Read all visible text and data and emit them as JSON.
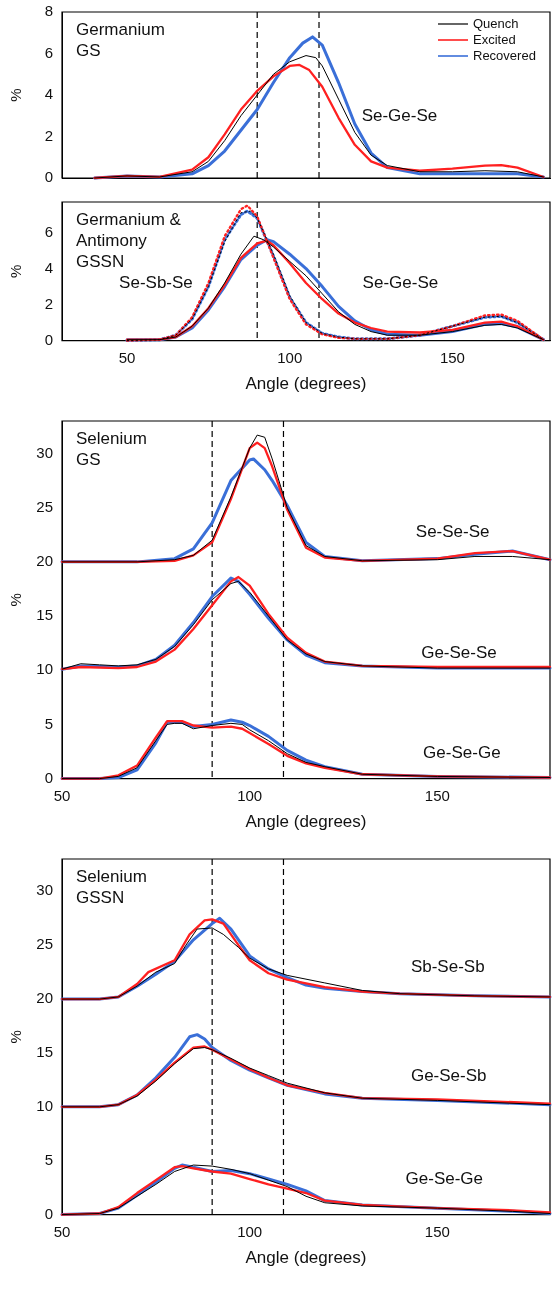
{
  "chart_data": [
    {
      "type": "line",
      "title": "Germanium\nGS",
      "ylabel": "%",
      "xlim": [
        30,
        180
      ],
      "xticks": [
        50,
        100,
        150
      ],
      "ylim": [
        0,
        8
      ],
      "yticks": [
        0,
        2,
        4,
        6,
        8
      ],
      "tick_labels": "y",
      "legend": "top right",
      "marker": "none",
      "ref_lines": [
        {
          "axis": "x",
          "value": 90,
          "line_style": "dashed",
          "color": "#000000"
        },
        {
          "axis": "x",
          "value": 109,
          "line_style": "dashed",
          "color": "#000000"
        }
      ],
      "annotations": [
        "Se-Ge-Se"
      ],
      "series": [
        {
          "name": "Quench",
          "color": "#000000",
          "x": [
            40,
            50,
            60,
            70,
            75,
            80,
            85,
            90,
            95,
            100,
            105,
            108,
            110,
            115,
            120,
            125,
            130,
            140,
            150,
            160,
            170,
            178
          ],
          "values": [
            0,
            0.1,
            0.05,
            0.3,
            0.8,
            1.8,
            3.0,
            4.0,
            5.0,
            5.6,
            5.9,
            5.8,
            5.4,
            3.8,
            2.2,
            1.1,
            0.6,
            0.3,
            0.3,
            0.35,
            0.3,
            0.05
          ]
        },
        {
          "name": "Excited",
          "color": "#ff2020",
          "x": [
            40,
            50,
            60,
            70,
            75,
            80,
            85,
            90,
            95,
            100,
            103,
            106,
            110,
            115,
            120,
            125,
            130,
            140,
            150,
            160,
            165,
            170,
            178
          ],
          "values": [
            0,
            0.1,
            0.05,
            0.4,
            1.0,
            2.1,
            3.3,
            4.2,
            4.9,
            5.4,
            5.45,
            5.2,
            4.4,
            2.9,
            1.6,
            0.8,
            0.5,
            0.35,
            0.45,
            0.6,
            0.62,
            0.5,
            0.05
          ]
        },
        {
          "name": "Recovered",
          "color": "#3a6fd8",
          "x": [
            40,
            50,
            60,
            70,
            75,
            80,
            85,
            90,
            95,
            100,
            104,
            107,
            110,
            115,
            120,
            125,
            130,
            140,
            150,
            160,
            170,
            178
          ],
          "values": [
            0,
            0.1,
            0.05,
            0.2,
            0.6,
            1.3,
            2.3,
            3.3,
            4.6,
            5.8,
            6.5,
            6.8,
            6.4,
            4.6,
            2.6,
            1.2,
            0.5,
            0.2,
            0.2,
            0.2,
            0.2,
            0.05
          ]
        }
      ]
    },
    {
      "type": "line",
      "title": "Germanium &\nAntimony\nGSSN",
      "xlabel": "Angle (degrees)",
      "ylabel": "%",
      "xlim": [
        30,
        180
      ],
      "xticks": [
        50,
        100,
        150
      ],
      "ylim": [
        0,
        7.7
      ],
      "yticks": [
        0,
        2,
        4,
        6
      ],
      "marker": "none",
      "ref_lines": [
        {
          "axis": "x",
          "value": 90,
          "line_style": "dashed",
          "color": "#000000"
        },
        {
          "axis": "x",
          "value": 109,
          "line_style": "dashed",
          "color": "#000000"
        }
      ],
      "annotations": [
        "Se-Sb-Se",
        "Se-Ge-Se"
      ],
      "series": [
        {
          "color": "#000000",
          "x": [
            50,
            60,
            65,
            70,
            75,
            80,
            85,
            89,
            92,
            95,
            100,
            105,
            110,
            115,
            120,
            125,
            130,
            140,
            150,
            160,
            165,
            170,
            178
          ],
          "values": [
            0.05,
            0.05,
            0.2,
            0.8,
            1.8,
            3.2,
            4.8,
            5.8,
            5.6,
            5.2,
            4.4,
            3.6,
            2.6,
            1.6,
            0.9,
            0.5,
            0.3,
            0.3,
            0.5,
            0.85,
            0.9,
            0.7,
            0.05
          ]
        },
        {
          "color": "#ff2020",
          "x": [
            50,
            60,
            65,
            70,
            75,
            80,
            85,
            90,
            93,
            95,
            100,
            105,
            110,
            115,
            120,
            125,
            130,
            140,
            150,
            160,
            165,
            170,
            178
          ],
          "values": [
            0.05,
            0.05,
            0.2,
            0.8,
            1.8,
            3.1,
            4.6,
            5.4,
            5.55,
            5.3,
            4.3,
            3.2,
            2.3,
            1.5,
            1.0,
            0.7,
            0.5,
            0.45,
            0.6,
            1.0,
            1.05,
            0.8,
            0.05
          ]
        },
        {
          "color": "#3a6fd8",
          "x": [
            50,
            60,
            65,
            70,
            75,
            80,
            85,
            90,
            93,
            95,
            100,
            105,
            110,
            115,
            120,
            125,
            130,
            140,
            150,
            160,
            165,
            170,
            178
          ],
          "values": [
            0.05,
            0.05,
            0.2,
            0.7,
            1.7,
            3.0,
            4.5,
            5.3,
            5.6,
            5.5,
            4.8,
            4.0,
            3.0,
            1.9,
            1.1,
            0.6,
            0.35,
            0.3,
            0.5,
            0.9,
            0.95,
            0.75,
            0.05
          ]
        },
        {
          "color": "#000000",
          "line_style": "dotted",
          "x": [
            50,
            60,
            65,
            70,
            75,
            80,
            85,
            88,
            90,
            95,
            100,
            105,
            110,
            115,
            120,
            130,
            140,
            150,
            160,
            165,
            170,
            178
          ],
          "values": [
            0,
            0.05,
            0.3,
            1.2,
            3.0,
            5.5,
            7.1,
            7.2,
            6.8,
            4.8,
            2.5,
            1.0,
            0.4,
            0.2,
            0.1,
            0.1,
            0.3,
            0.8,
            1.3,
            1.35,
            1.0,
            0.05
          ]
        },
        {
          "color": "#ff2020",
          "line_style": "dotted",
          "x": [
            50,
            60,
            65,
            70,
            75,
            80,
            85,
            87,
            90,
            95,
            100,
            105,
            110,
            115,
            120,
            130,
            140,
            150,
            160,
            165,
            170,
            178
          ],
          "values": [
            0,
            0.05,
            0.3,
            1.3,
            3.2,
            5.8,
            7.3,
            7.5,
            6.9,
            4.6,
            2.3,
            0.9,
            0.35,
            0.15,
            0.1,
            0.1,
            0.3,
            0.8,
            1.4,
            1.45,
            1.1,
            0.05
          ]
        },
        {
          "color": "#3a6fd8",
          "line_style": "dotted",
          "x": [
            50,
            60,
            65,
            70,
            75,
            80,
            85,
            87,
            90,
            95,
            100,
            105,
            110,
            115,
            120,
            130,
            140,
            150,
            160,
            165,
            170,
            178
          ],
          "values": [
            0,
            0.05,
            0.3,
            1.2,
            3.0,
            5.6,
            7.0,
            7.2,
            6.8,
            4.7,
            2.4,
            1.0,
            0.4,
            0.2,
            0.1,
            0.1,
            0.3,
            0.8,
            1.3,
            1.35,
            1.0,
            0.05
          ]
        }
      ]
    },
    {
      "type": "line",
      "title": "Selenium\nGS",
      "xlabel": "Angle (degrees)",
      "ylabel": "%",
      "xlim": [
        50,
        180
      ],
      "xticks": [
        50,
        100,
        150
      ],
      "ylim": [
        0,
        33
      ],
      "yticks": [
        0,
        5,
        10,
        15,
        20,
        25,
        30
      ],
      "marker": "none",
      "ref_lines": [
        {
          "axis": "x",
          "value": 90,
          "line_style": "dashed",
          "color": "#000000"
        },
        {
          "axis": "x",
          "value": 109,
          "line_style": "dashed",
          "color": "#000000"
        }
      ],
      "annotations": [
        "Se-Se-Se",
        "Ge-Se-Se",
        "Ge-Se-Ge"
      ],
      "series": [
        {
          "color": "#000000",
          "x": [
            50,
            70,
            80,
            85,
            90,
            95,
            100,
            102,
            104,
            106,
            110,
            115,
            120,
            130,
            150,
            160,
            170,
            180
          ],
          "values": [
            20,
            20,
            20.2,
            20.6,
            22,
            26,
            30.5,
            31.7,
            31.5,
            29.5,
            25,
            21.5,
            20.5,
            20.1,
            20.2,
            20.5,
            20.5,
            20.2
          ]
        },
        {
          "color": "#ff2020",
          "x": [
            50,
            70,
            80,
            85,
            90,
            95,
            100,
            102,
            104,
            106,
            110,
            115,
            120,
            130,
            150,
            160,
            170,
            180
          ],
          "values": [
            20,
            20,
            20.1,
            20.6,
            21.8,
            25.8,
            30.5,
            31,
            30.5,
            28.8,
            24.8,
            21.3,
            20.4,
            20.1,
            20.3,
            20.8,
            21,
            20.2
          ]
        },
        {
          "color": "#3a6fd8",
          "x": [
            50,
            70,
            80,
            85,
            90,
            95,
            100,
            101,
            104,
            106,
            110,
            115,
            120,
            130,
            150,
            160,
            170,
            180
          ],
          "values": [
            20,
            20,
            20.3,
            21.2,
            23.6,
            27.5,
            29.4,
            29.5,
            28.5,
            27.5,
            25.2,
            21.8,
            20.5,
            20.1,
            20.3,
            20.7,
            21,
            20.2
          ]
        },
        {
          "color": "#000000",
          "x": [
            50,
            55,
            60,
            65,
            70,
            75,
            80,
            85,
            90,
            95,
            97,
            100,
            105,
            110,
            115,
            120,
            130,
            150,
            180
          ],
          "values": [
            10.1,
            10.6,
            10.5,
            10.4,
            10.5,
            11,
            12.2,
            14.2,
            16.5,
            18,
            18.2,
            17.2,
            15,
            12.8,
            11.5,
            10.8,
            10.4,
            10.2,
            10.2
          ]
        },
        {
          "color": "#ff2020",
          "x": [
            50,
            55,
            65,
            70,
            75,
            80,
            85,
            90,
            95,
            97,
            100,
            105,
            110,
            115,
            120,
            130,
            150,
            180
          ],
          "values": [
            10.1,
            10.3,
            10.2,
            10.3,
            10.8,
            11.9,
            13.8,
            16,
            18.2,
            18.6,
            17.8,
            15.2,
            13,
            11.6,
            10.8,
            10.4,
            10.3,
            10.3
          ]
        },
        {
          "color": "#3a6fd8",
          "x": [
            50,
            55,
            65,
            70,
            75,
            80,
            85,
            90,
            95,
            97,
            100,
            105,
            110,
            115,
            120,
            130,
            150,
            180
          ],
          "values": [
            10.1,
            10.4,
            10.3,
            10.4,
            11,
            12.3,
            14.4,
            16.8,
            18.5,
            18.2,
            17,
            14.8,
            12.8,
            11.4,
            10.7,
            10.4,
            10.2,
            10.2
          ]
        },
        {
          "color": "#000000",
          "x": [
            50,
            60,
            65,
            70,
            75,
            78,
            80,
            82,
            85,
            90,
            95,
            98,
            100,
            105,
            110,
            115,
            120,
            130,
            150,
            180
          ],
          "values": [
            0,
            0,
            0.2,
            1,
            3.5,
            5,
            5.1,
            5.1,
            4.6,
            4.9,
            5.1,
            5,
            4.5,
            3.5,
            2.3,
            1.5,
            1.1,
            0.4,
            0.2,
            0.1
          ]
        },
        {
          "color": "#ff2020",
          "x": [
            50,
            60,
            65,
            70,
            75,
            78,
            82,
            85,
            90,
            95,
            98,
            100,
            105,
            110,
            115,
            120,
            130,
            150,
            180
          ],
          "values": [
            0,
            0,
            0.3,
            1.2,
            3.8,
            5.3,
            5.3,
            4.9,
            4.7,
            4.8,
            4.6,
            4.2,
            3.2,
            2.1,
            1.4,
            1,
            0.4,
            0.2,
            0.1
          ]
        },
        {
          "color": "#3a6fd8",
          "x": [
            50,
            60,
            65,
            70,
            75,
            78,
            82,
            85,
            90,
            95,
            98,
            100,
            105,
            110,
            115,
            120,
            130,
            150,
            180
          ],
          "values": [
            0,
            0,
            0.1,
            0.8,
            3.3,
            5.2,
            5.2,
            4.8,
            5,
            5.4,
            5.2,
            4.9,
            3.9,
            2.6,
            1.7,
            1.1,
            0.4,
            0.2,
            0.1
          ]
        }
      ]
    },
    {
      "type": "line",
      "title": "Selenium\nGSSN",
      "xlabel": "Angle (degrees)",
      "ylabel": "%",
      "xlim": [
        50,
        180
      ],
      "xticks": [
        50,
        100,
        150
      ],
      "ylim": [
        0,
        33
      ],
      "yticks": [
        0,
        5,
        10,
        15,
        20,
        25,
        30
      ],
      "marker": "none",
      "ref_lines": [
        {
          "axis": "x",
          "value": 90,
          "line_style": "dashed",
          "color": "#000000"
        },
        {
          "axis": "x",
          "value": 109,
          "line_style": "dashed",
          "color": "#000000"
        }
      ],
      "annotations": [
        "Sb-Se-Sb",
        "Ge-Se-Sb",
        "Ge-Se-Ge"
      ],
      "series": [
        {
          "color": "#000000",
          "x": [
            50,
            60,
            65,
            70,
            75,
            80,
            83,
            86,
            90,
            93,
            97,
            100,
            105,
            110,
            120,
            130,
            140,
            160,
            180
          ],
          "values": [
            20,
            20,
            20.2,
            21.2,
            22.5,
            23.3,
            25,
            26.5,
            26.6,
            26,
            24.8,
            23.8,
            22.8,
            22.2,
            21.5,
            20.8,
            20.5,
            20.3,
            20.2
          ]
        },
        {
          "color": "#ff2020",
          "x": [
            50,
            60,
            65,
            70,
            73,
            80,
            84,
            88,
            90,
            93,
            97,
            100,
            105,
            110,
            120,
            130,
            140,
            160,
            180
          ],
          "values": [
            20,
            20,
            20.2,
            21.4,
            22.5,
            23.6,
            26,
            27.3,
            27.4,
            27,
            25,
            23.6,
            22.4,
            21.8,
            21.1,
            20.7,
            20.5,
            20.3,
            20.2
          ]
        },
        {
          "color": "#3a6fd8",
          "x": [
            50,
            60,
            65,
            70,
            75,
            80,
            85,
            90,
            92,
            95,
            100,
            105,
            110,
            115,
            120,
            130,
            140,
            160,
            180
          ],
          "values": [
            20,
            20,
            20.2,
            21.2,
            22.3,
            23.5,
            25.5,
            27,
            27.5,
            26.5,
            24,
            22.8,
            22,
            21.3,
            21,
            20.7,
            20.5,
            20.3,
            20.2
          ]
        },
        {
          "color": "#000000",
          "x": [
            50,
            60,
            65,
            70,
            75,
            80,
            85,
            88,
            90,
            95,
            100,
            105,
            110,
            120,
            130,
            150,
            180
          ],
          "values": [
            10,
            10,
            10.2,
            11,
            12.4,
            14,
            15.4,
            15.5,
            15.3,
            14.5,
            13.6,
            12.9,
            12.2,
            11.3,
            10.8,
            10.6,
            10.2
          ]
        },
        {
          "color": "#ff2020",
          "x": [
            50,
            60,
            65,
            70,
            75,
            80,
            85,
            88,
            90,
            95,
            100,
            105,
            110,
            120,
            130,
            150,
            180
          ],
          "values": [
            10,
            10,
            10.2,
            11.1,
            12.5,
            14.1,
            15.5,
            15.6,
            15.3,
            14.4,
            13.5,
            12.7,
            12,
            11.3,
            10.8,
            10.7,
            10.3
          ]
        },
        {
          "color": "#3a6fd8",
          "x": [
            50,
            60,
            65,
            70,
            75,
            80,
            84,
            86,
            88,
            90,
            95,
            100,
            105,
            110,
            120,
            130,
            150,
            180
          ],
          "values": [
            10,
            10,
            10.2,
            11.1,
            12.7,
            14.6,
            16.5,
            16.7,
            16.3,
            15.5,
            14.3,
            13.4,
            12.7,
            12,
            11.2,
            10.8,
            10.6,
            10.2
          ]
        },
        {
          "color": "#000000",
          "x": [
            50,
            60,
            65,
            70,
            75,
            80,
            85,
            90,
            95,
            100,
            105,
            110,
            115,
            120,
            130,
            150,
            170,
            180
          ],
          "values": [
            0,
            0.1,
            0.6,
            1.7,
            2.8,
            4,
            4.6,
            4.5,
            4.2,
            3.8,
            3.2,
            2.6,
            1.7,
            1.1,
            0.8,
            0.6,
            0.3,
            0.1
          ]
        },
        {
          "color": "#ff2020",
          "x": [
            50,
            60,
            65,
            70,
            75,
            80,
            82,
            85,
            90,
            95,
            100,
            105,
            110,
            115,
            120,
            130,
            150,
            170,
            180
          ],
          "values": [
            0,
            0.1,
            0.7,
            2,
            3.2,
            4.4,
            4.5,
            4.3,
            4,
            3.8,
            3.3,
            2.8,
            2.4,
            2,
            1.3,
            0.9,
            0.6,
            0.4,
            0.2
          ]
        },
        {
          "color": "#3a6fd8",
          "x": [
            50,
            60,
            65,
            70,
            75,
            80,
            82,
            85,
            90,
            95,
            100,
            105,
            110,
            115,
            120,
            130,
            150,
            170,
            180
          ],
          "values": [
            0,
            0.1,
            0.6,
            1.8,
            3,
            4.3,
            4.6,
            4.4,
            4,
            4.1,
            3.8,
            3.3,
            2.8,
            2.2,
            1.3,
            0.9,
            0.6,
            0.3,
            0.1
          ]
        }
      ]
    }
  ]
}
